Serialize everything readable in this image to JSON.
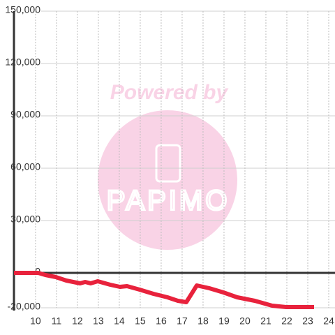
{
  "chart_data": {
    "type": "line",
    "watermark": [
      "Powered by",
      "PAPIMO"
    ],
    "x": [
      8.97,
      10.13,
      10.47,
      10.97,
      11.47,
      12.13,
      12.37,
      12.63,
      12.97,
      13.57,
      14.03,
      14.37,
      14.97,
      15.63,
      16.3,
      16.8,
      17.2,
      17.7,
      18.3,
      18.97,
      19.63,
      20.47,
      21.3,
      21.97,
      23.3
    ],
    "series": [
      {
        "color": "#e8223c",
        "values": [
          0,
          0,
          -1200,
          -2400,
          -4400,
          -6000,
          -5200,
          -6000,
          -4800,
          -6800,
          -8000,
          -7600,
          -9600,
          -12000,
          -14000,
          -16000,
          -16800,
          -7200,
          -8800,
          -11200,
          -14000,
          -16000,
          -18800,
          -19600,
          -19600
        ]
      }
    ],
    "xlim": [
      8.97,
      24.3
    ],
    "xticks": [
      10,
      11,
      12,
      13,
      14,
      15,
      16,
      17,
      18,
      19,
      20,
      21,
      22,
      23,
      24
    ],
    "ylim": [
      -20000,
      150000
    ],
    "yticks": [
      {
        "value": -20000,
        "label": "-20,000"
      },
      0,
      {
        "value": 30000,
        "label": "30,000"
      },
      {
        "value": 60000,
        "label": "60,000"
      },
      {
        "value": 90000,
        "label": "90,000"
      },
      {
        "value": 120000,
        "label": "120,000"
      },
      {
        "value": 150000,
        "label": "150,000"
      }
    ],
    "grid": true
  }
}
